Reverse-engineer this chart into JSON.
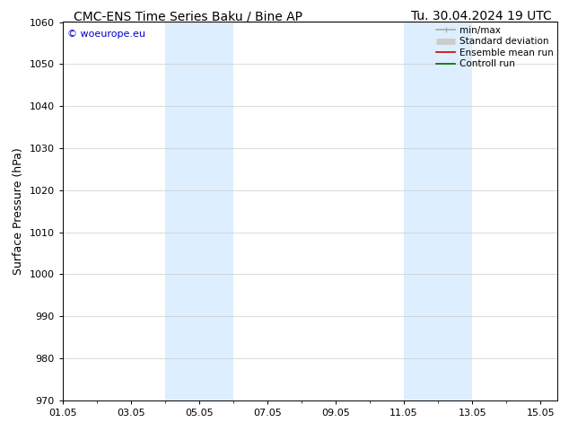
{
  "title_left": "CMC-ENS Time Series Baku / Bine AP",
  "title_right": "Tu. 30.04.2024 19 UTC",
  "ylabel": "Surface Pressure (hPa)",
  "ylim": [
    970,
    1060
  ],
  "yticks": [
    970,
    980,
    990,
    1000,
    1010,
    1020,
    1030,
    1040,
    1050,
    1060
  ],
  "xlim_start": 0.0,
  "xlim_end": 14.5,
  "xtick_labels": [
    "01.05",
    "03.05",
    "05.05",
    "07.05",
    "09.05",
    "11.05",
    "13.05",
    "15.05"
  ],
  "xtick_positions": [
    0,
    2,
    4,
    6,
    8,
    10,
    12,
    14
  ],
  "shaded_bands": [
    {
      "xmin": 3.0,
      "xmax": 5.0
    },
    {
      "xmin": 10.0,
      "xmax": 12.0
    }
  ],
  "shade_color": "#ddeeff",
  "watermark_text": "© woeurope.eu",
  "watermark_color": "#0000cc",
  "legend_items": [
    {
      "label": "min/max",
      "color": "#aaaaaa",
      "lw": 1.2
    },
    {
      "label": "Standard deviation",
      "color": "#cccccc",
      "lw": 5
    },
    {
      "label": "Ensemble mean run",
      "color": "#cc0000",
      "lw": 1.2
    },
    {
      "label": "Controll run",
      "color": "#006600",
      "lw": 1.2
    }
  ],
  "bg_color": "#ffffff",
  "grid_color": "#cccccc",
  "title_fontsize": 10,
  "tick_fontsize": 8,
  "ylabel_fontsize": 9,
  "legend_fontsize": 7.5,
  "watermark_fontsize": 8
}
